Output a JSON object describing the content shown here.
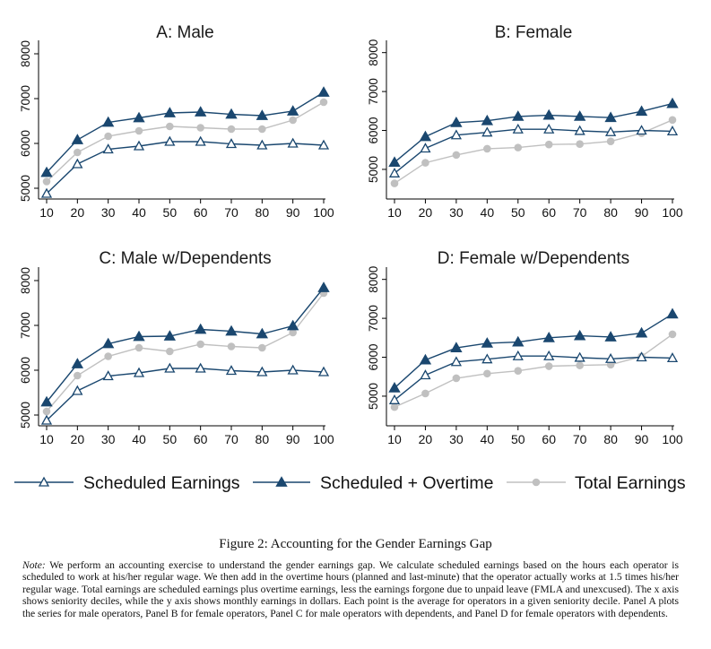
{
  "chart_data": [
    {
      "type": "line",
      "title": "A: Male",
      "x": [
        10,
        20,
        30,
        40,
        50,
        60,
        70,
        80,
        90,
        100
      ],
      "ylim": [
        4900,
        8200
      ],
      "yticks": [
        5000,
        6000,
        7000,
        8000
      ],
      "series": [
        {
          "name": "Scheduled Earnings",
          "values": [
            4880,
            5540,
            5870,
            5940,
            6040,
            6040,
            5990,
            5960,
            6000,
            5960
          ]
        },
        {
          "name": "Scheduled + Overtime",
          "values": [
            5350,
            6080,
            6470,
            6570,
            6680,
            6700,
            6650,
            6620,
            6720,
            7140
          ]
        },
        {
          "name": "Total Earnings",
          "values": [
            5150,
            5800,
            6160,
            6280,
            6380,
            6350,
            6320,
            6320,
            6520,
            6920
          ]
        }
      ]
    },
    {
      "type": "line",
      "title": "B: Female",
      "x": [
        10,
        20,
        30,
        40,
        50,
        60,
        70,
        80,
        90,
        100
      ],
      "ylim": [
        4400,
        8200
      ],
      "yticks": [
        5000,
        6000,
        7000,
        8000
      ],
      "series": [
        {
          "name": "Scheduled Earnings",
          "values": [
            4900,
            5540,
            5880,
            5950,
            6030,
            6030,
            5990,
            5960,
            6000,
            5980
          ]
        },
        {
          "name": "Scheduled + Overtime",
          "values": [
            5180,
            5840,
            6200,
            6250,
            6360,
            6390,
            6360,
            6330,
            6490,
            6690
          ]
        },
        {
          "name": "Total Earnings",
          "values": [
            4640,
            5170,
            5370,
            5530,
            5560,
            5640,
            5650,
            5720,
            5930,
            6270
          ]
        }
      ]
    },
    {
      "type": "line",
      "title": "C: Male w/Dependents",
      "x": [
        10,
        20,
        30,
        40,
        50,
        60,
        70,
        80,
        90,
        100
      ],
      "ylim": [
        4900,
        8200
      ],
      "yticks": [
        5000,
        6000,
        7000,
        8000
      ],
      "series": [
        {
          "name": "Scheduled Earnings",
          "values": [
            4880,
            5540,
            5870,
            5940,
            6040,
            6040,
            5990,
            5960,
            6000,
            5960
          ]
        },
        {
          "name": "Scheduled + Overtime",
          "values": [
            5290,
            6140,
            6590,
            6750,
            6760,
            6910,
            6870,
            6810,
            6990,
            7840
          ]
        },
        {
          "name": "Total Earnings",
          "values": [
            5080,
            5880,
            6310,
            6500,
            6420,
            6580,
            6530,
            6500,
            6840,
            7720
          ]
        }
      ]
    },
    {
      "type": "line",
      "title": "D: Female w/Dependents",
      "x": [
        10,
        20,
        30,
        40,
        50,
        60,
        70,
        80,
        90,
        100
      ],
      "ylim": [
        4400,
        8200
      ],
      "yticks": [
        5000,
        6000,
        7000,
        8000
      ],
      "series": [
        {
          "name": "Scheduled Earnings",
          "values": [
            4900,
            5540,
            5880,
            5950,
            6030,
            6030,
            5990,
            5960,
            6000,
            5980
          ]
        },
        {
          "name": "Scheduled + Overtime",
          "values": [
            5210,
            5930,
            6240,
            6360,
            6390,
            6500,
            6550,
            6520,
            6620,
            7110
          ]
        },
        {
          "name": "Total Earnings",
          "values": [
            4720,
            5070,
            5460,
            5580,
            5650,
            5770,
            5790,
            5810,
            6020,
            6590
          ]
        }
      ]
    }
  ],
  "legend": {
    "items": [
      {
        "label": "Scheduled Earnings",
        "color": "#1a476f",
        "marker": "hollow-triangle"
      },
      {
        "label": "Scheduled + Overtime",
        "color": "#1a476f",
        "marker": "filled-triangle"
      },
      {
        "label": "Total Earnings",
        "color": "#c0c0c0",
        "marker": "filled-circle"
      }
    ]
  },
  "colors": {
    "navy": "#1a476f",
    "gray": "#c0c0c0",
    "axis": "#000000"
  },
  "caption": "Figure 2: Accounting for the Gender Earnings Gap",
  "note_label": "Note:",
  "note_text": " We perform an accounting exercise to understand the gender earnings gap. We calculate scheduled earnings based on the hours each operator is scheduled to work at his/her regular wage. We then add in the overtime hours (planned and last-minute) that the operator actually works at 1.5 times his/her regular wage. Total earnings are scheduled earnings plus overtime earnings, less the earnings forgone due to unpaid leave (FMLA and unexcused). The x axis shows seniority deciles, while the y axis shows monthly earnings in dollars. Each point is the average for operators in a given seniority decile. Panel A plots the series for male operators, Panel B for female operators, Panel C for male operators with dependents, and Panel D for female operators with dependents."
}
